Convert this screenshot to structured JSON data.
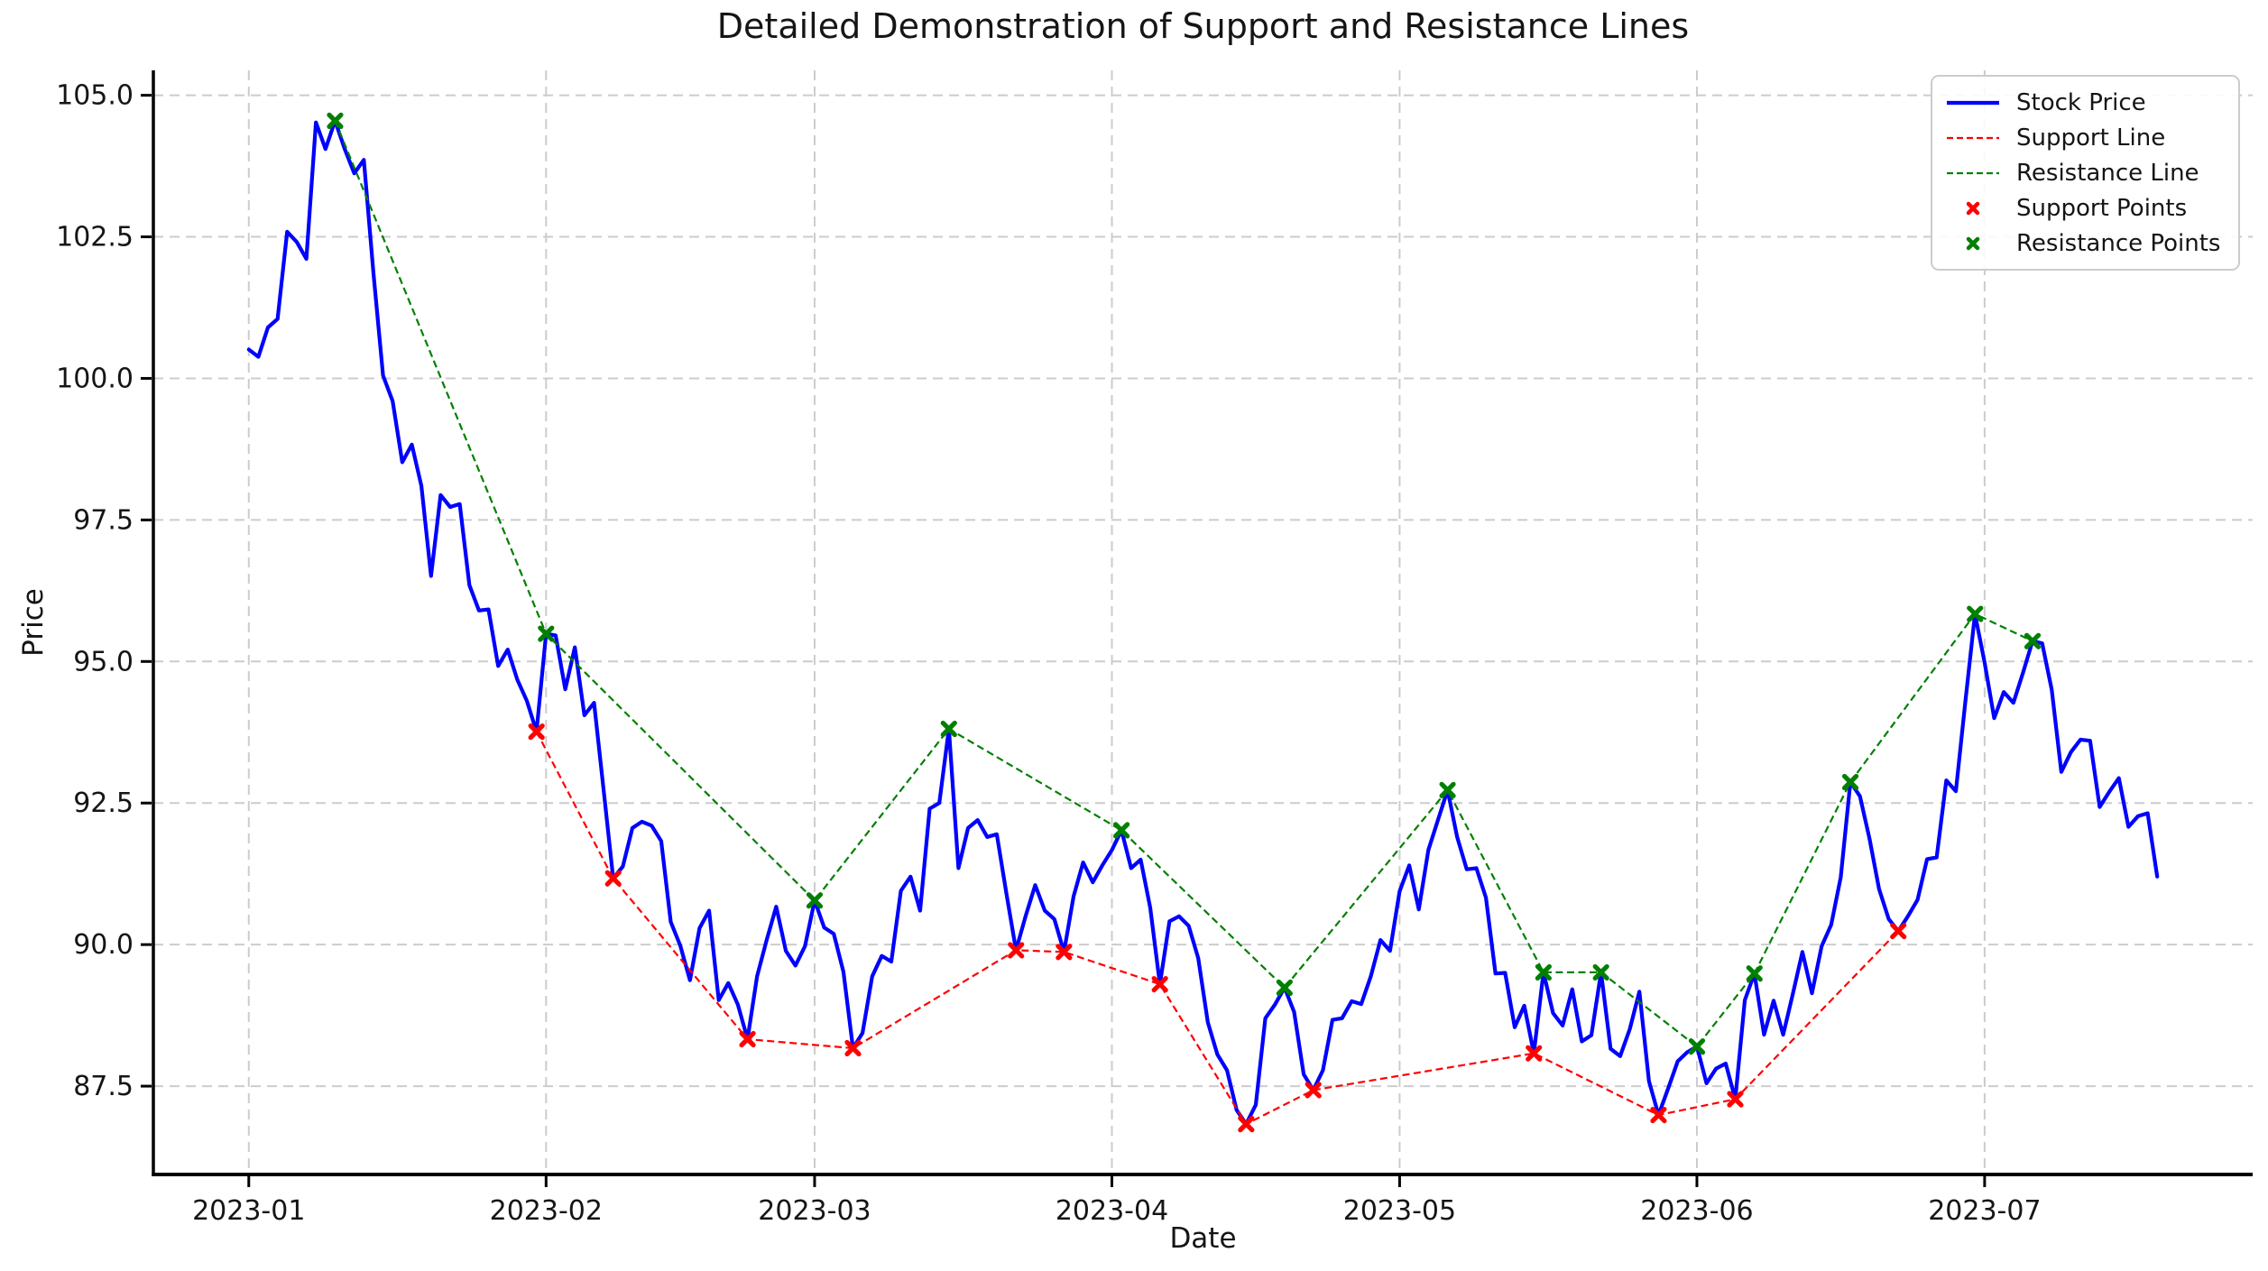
{
  "title": "Detailed Demonstration of Support and Resistance Lines",
  "axes": {
    "xlabel": "Date",
    "ylabel": "Price"
  },
  "colors": {
    "stock_price": "#0000ff",
    "support": "#ff0000",
    "resistance": "#008000",
    "grid": "#cccccc",
    "text": "#151515",
    "spine": "#000000",
    "legend_border": "#cccccc"
  },
  "legend": {
    "position": "upper right",
    "items": [
      {
        "label": "Stock Price",
        "color": "#0000ff",
        "style": "solid-line"
      },
      {
        "label": "Support Line",
        "color": "#ff0000",
        "style": "dashed-line"
      },
      {
        "label": "Resistance Line",
        "color": "#008000",
        "style": "dashed-line"
      },
      {
        "label": "Support Points",
        "color": "#ff0000",
        "style": "marker-x"
      },
      {
        "label": "Resistance Points",
        "color": "#008000",
        "style": "marker-x"
      }
    ]
  },
  "chart_data": {
    "type": "line",
    "title": "Detailed Demonstration of Support and Resistance Lines",
    "xlabel": "Date",
    "ylabel": "Price",
    "grid": true,
    "legend_position": "upper right",
    "start_date": "2023-01-01",
    "frequency": "daily",
    "x_tick_labels": [
      "2023-01",
      "2023-02",
      "2023-03",
      "2023-04",
      "2023-05",
      "2023-06",
      "2023-07"
    ],
    "x_tick_day_offsets": [
      0,
      31,
      59,
      90,
      120,
      151,
      181
    ],
    "y_tick_labels": [
      "87.5",
      "90.0",
      "92.5",
      "95.0",
      "97.5",
      "100.0",
      "102.5",
      "105.0"
    ],
    "y_ticks": [
      87.5,
      90.0,
      92.5,
      95.0,
      97.5,
      100.0,
      102.5,
      105.0
    ],
    "ylim": [
      85.94,
      105.44
    ],
    "series": [
      {
        "name": "Stock Price",
        "color": "#0000ff",
        "line_style": "solid",
        "values": [
          100.51,
          100.38,
          100.9,
          101.05,
          102.59,
          102.41,
          102.11,
          104.52,
          104.05,
          104.55,
          104.05,
          103.62,
          103.86,
          101.85,
          100.05,
          99.6,
          98.52,
          98.83,
          98.1,
          96.51,
          97.94,
          97.73,
          97.78,
          96.35,
          95.9,
          95.92,
          94.92,
          95.21,
          94.68,
          94.3,
          93.76,
          95.49,
          95.46,
          94.51,
          95.25,
          94.05,
          94.27,
          92.73,
          91.17,
          91.38,
          92.06,
          92.17,
          92.1,
          91.83,
          90.4,
          89.98,
          89.37,
          90.29,
          90.6,
          89.02,
          89.32,
          88.94,
          88.33,
          89.44,
          90.08,
          90.67,
          89.89,
          89.63,
          89.97,
          90.78,
          90.3,
          90.19,
          89.52,
          88.17,
          88.44,
          89.44,
          89.8,
          89.7,
          90.95,
          91.2,
          90.6,
          92.4,
          92.5,
          93.81,
          91.35,
          92.06,
          92.2,
          91.9,
          91.95,
          90.9,
          89.9,
          90.5,
          91.05,
          90.6,
          90.45,
          89.87,
          90.85,
          91.45,
          91.1,
          91.4,
          91.67,
          92.02,
          91.35,
          91.5,
          90.65,
          89.3,
          90.41,
          90.5,
          90.33,
          89.76,
          88.63,
          88.06,
          87.78,
          87.08,
          86.83,
          87.17,
          88.7,
          88.94,
          89.24,
          88.81,
          87.71,
          87.43,
          87.78,
          88.67,
          88.7,
          89.0,
          88.95,
          89.44,
          90.08,
          89.89,
          90.94,
          91.4,
          90.62,
          91.67,
          92.2,
          92.73,
          91.9,
          91.33,
          91.35,
          90.83,
          89.49,
          89.5,
          88.54,
          88.92,
          88.08,
          89.51,
          88.79,
          88.57,
          89.21,
          88.29,
          88.4,
          89.51,
          88.16,
          88.03,
          88.51,
          89.17,
          87.59,
          86.99,
          87.46,
          87.94,
          88.1,
          88.2,
          87.55,
          87.81,
          87.9,
          87.27,
          89.02,
          89.49,
          88.41,
          89.01,
          88.41,
          89.13,
          89.87,
          89.14,
          89.97,
          90.35,
          91.19,
          92.87,
          92.62,
          91.87,
          90.98,
          90.45,
          90.24,
          90.5,
          90.79,
          91.51,
          91.54,
          92.9,
          92.71,
          94.3,
          95.84,
          94.98,
          94.0,
          94.46,
          94.27,
          94.8,
          95.36,
          95.32,
          94.5,
          93.05,
          93.4,
          93.62,
          93.6,
          92.43,
          92.7,
          92.94,
          92.08,
          92.27,
          92.32,
          91.2
        ]
      },
      {
        "name": "Support Line",
        "color": "#ff0000",
        "line_style": "dashed",
        "points": [
          [
            "2023-01-31",
            93.76
          ],
          [
            "2023-02-08",
            91.17
          ],
          [
            "2023-02-22",
            88.33
          ],
          [
            "2023-03-05",
            88.17
          ],
          [
            "2023-03-22",
            89.9
          ],
          [
            "2023-03-27",
            89.87
          ],
          [
            "2023-04-06",
            89.3
          ],
          [
            "2023-04-15",
            86.83
          ],
          [
            "2023-04-22",
            87.43
          ],
          [
            "2023-05-15",
            88.08
          ],
          [
            "2023-05-28",
            86.99
          ],
          [
            "2023-06-05",
            87.27
          ],
          [
            "2023-06-22",
            90.24
          ]
        ]
      },
      {
        "name": "Resistance Line",
        "color": "#008000",
        "line_style": "dashed",
        "points": [
          [
            "2023-01-10",
            104.55
          ],
          [
            "2023-02-01",
            95.49
          ],
          [
            "2023-03-01",
            90.78
          ],
          [
            "2023-03-15",
            93.81
          ],
          [
            "2023-04-02",
            92.02
          ],
          [
            "2023-04-19",
            89.24
          ],
          [
            "2023-05-06",
            92.73
          ],
          [
            "2023-05-16",
            89.51
          ],
          [
            "2023-05-22",
            89.51
          ],
          [
            "2023-06-01",
            88.2
          ],
          [
            "2023-06-07",
            89.49
          ],
          [
            "2023-06-17",
            92.87
          ],
          [
            "2023-06-30",
            95.84
          ],
          [
            "2023-07-06",
            95.36
          ]
        ]
      },
      {
        "name": "Support Points",
        "color": "#ff0000",
        "marker": "X",
        "points": [
          [
            "2023-01-31",
            93.76
          ],
          [
            "2023-02-08",
            91.17
          ],
          [
            "2023-02-22",
            88.33
          ],
          [
            "2023-03-05",
            88.17
          ],
          [
            "2023-03-22",
            89.9
          ],
          [
            "2023-03-27",
            89.87
          ],
          [
            "2023-04-06",
            89.3
          ],
          [
            "2023-04-15",
            86.83
          ],
          [
            "2023-04-22",
            87.43
          ],
          [
            "2023-05-15",
            88.08
          ],
          [
            "2023-05-28",
            86.99
          ],
          [
            "2023-06-05",
            87.27
          ],
          [
            "2023-06-22",
            90.24
          ]
        ]
      },
      {
        "name": "Resistance Points",
        "color": "#008000",
        "marker": "X",
        "points": [
          [
            "2023-01-10",
            104.55
          ],
          [
            "2023-02-01",
            95.49
          ],
          [
            "2023-03-01",
            90.78
          ],
          [
            "2023-03-15",
            93.81
          ],
          [
            "2023-04-02",
            92.02
          ],
          [
            "2023-04-19",
            89.24
          ],
          [
            "2023-05-06",
            92.73
          ],
          [
            "2023-05-16",
            89.51
          ],
          [
            "2023-05-22",
            89.51
          ],
          [
            "2023-06-01",
            88.2
          ],
          [
            "2023-06-07",
            89.49
          ],
          [
            "2023-06-17",
            92.87
          ],
          [
            "2023-06-30",
            95.84
          ],
          [
            "2023-07-06",
            95.36
          ]
        ]
      }
    ]
  }
}
